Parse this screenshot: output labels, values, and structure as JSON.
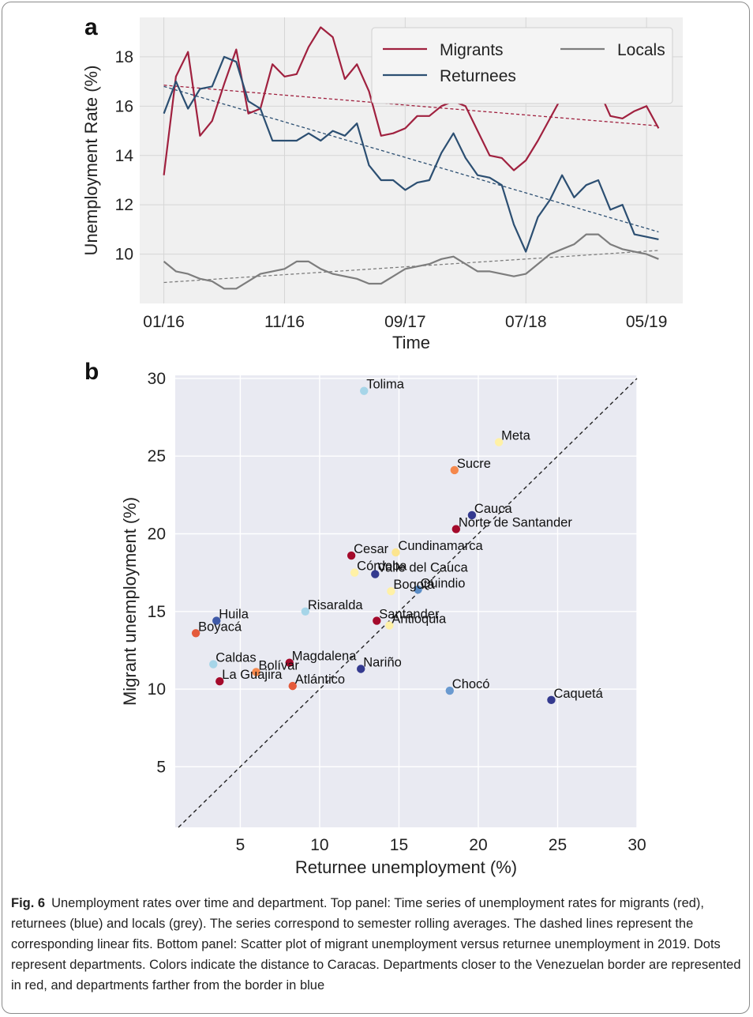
{
  "chart_data": [
    {
      "panel_label": "a",
      "type": "line",
      "xlabel": "Time",
      "ylabel": "Unemployment Rate (%)",
      "x_tick_labels": [
        "01/16",
        "11/16",
        "09/17",
        "07/18",
        "05/19"
      ],
      "x_ticks": [
        "2016-01",
        "2016-11",
        "2017-09",
        "2018-07",
        "2019-05"
      ],
      "x_range": [
        "2015-11",
        "2019-08"
      ],
      "y_ticks": [
        10,
        12,
        14,
        16,
        18
      ],
      "ylim": [
        8.0,
        19.6
      ],
      "grid": true,
      "legend_position": "top-right",
      "x": [
        "2016-01",
        "2016-02",
        "2016-03",
        "2016-04",
        "2016-05",
        "2016-06",
        "2016-07",
        "2016-08",
        "2016-09",
        "2016-10",
        "2016-11",
        "2016-12",
        "2017-01",
        "2017-02",
        "2017-03",
        "2017-04",
        "2017-05",
        "2017-06",
        "2017-07",
        "2017-08",
        "2017-09",
        "2017-10",
        "2017-11",
        "2017-12",
        "2018-01",
        "2018-02",
        "2018-03",
        "2018-04",
        "2018-05",
        "2018-06",
        "2018-07",
        "2018-08",
        "2018-09",
        "2018-10",
        "2018-11",
        "2018-12",
        "2019-01",
        "2019-02",
        "2019-03",
        "2019-04",
        "2019-05",
        "2019-06"
      ],
      "series": [
        {
          "name": "Migrants",
          "color": "#a0213f",
          "values": [
            13.2,
            17.2,
            18.2,
            14.8,
            15.4,
            16.9,
            18.3,
            15.7,
            15.9,
            17.7,
            17.2,
            17.3,
            18.4,
            19.2,
            18.8,
            17.1,
            17.7,
            16.6,
            14.8,
            14.9,
            15.1,
            15.6,
            15.6,
            16.0,
            16.2,
            16.0,
            15.0,
            14.0,
            13.9,
            13.4,
            13.8,
            14.6,
            15.5,
            16.4,
            16.2,
            16.5,
            16.7,
            15.6,
            15.5,
            15.8,
            16.0,
            15.1
          ],
          "trend": [
            16.85,
            15.2
          ]
        },
        {
          "name": "Returnees",
          "color": "#2c4f72",
          "values": [
            15.7,
            17.0,
            15.9,
            16.7,
            16.8,
            18.0,
            17.8,
            16.2,
            15.9,
            14.6,
            14.6,
            14.6,
            14.9,
            14.6,
            15.0,
            14.8,
            15.3,
            13.6,
            13.0,
            13.0,
            12.6,
            12.9,
            13.0,
            14.1,
            14.9,
            13.9,
            13.2,
            13.1,
            12.8,
            11.2,
            10.1,
            11.5,
            12.2,
            13.2,
            12.3,
            12.8,
            13.0,
            11.8,
            12.0,
            10.8,
            10.7,
            10.6
          ],
          "trend": [
            16.8,
            10.9
          ]
        },
        {
          "name": "Locals",
          "color": "#7d7d7d",
          "values": [
            9.7,
            9.3,
            9.2,
            9.0,
            8.9,
            8.6,
            8.6,
            8.9,
            9.2,
            9.3,
            9.4,
            9.7,
            9.7,
            9.4,
            9.2,
            9.1,
            9.0,
            8.8,
            8.8,
            9.1,
            9.4,
            9.5,
            9.6,
            9.8,
            9.9,
            9.6,
            9.3,
            9.3,
            9.2,
            9.1,
            9.2,
            9.6,
            10.0,
            10.2,
            10.4,
            10.8,
            10.8,
            10.4,
            10.2,
            10.1,
            10.0,
            9.8
          ],
          "trend": [
            8.85,
            10.15
          ]
        }
      ]
    },
    {
      "panel_label": "b",
      "type": "scatter",
      "xlabel": "Returnee unemployment (%)",
      "ylabel": "Migrant unemployment (%)",
      "x_ticks": [
        5,
        10,
        15,
        20,
        25,
        30
      ],
      "y_ticks": [
        5,
        10,
        15,
        20,
        25,
        30
      ],
      "xlim": [
        0.9,
        30
      ],
      "ylim": [
        1.1,
        30.2
      ],
      "grid": true,
      "reference_line": "y = x",
      "points": [
        {
          "label": "Tolima",
          "x": 12.8,
          "y": 29.2,
          "color": "#a6d5e8"
        },
        {
          "label": "Meta",
          "x": 21.3,
          "y": 25.9,
          "color": "#fff1a6"
        },
        {
          "label": "Sucre",
          "x": 18.5,
          "y": 24.1,
          "color": "#f5884c"
        },
        {
          "label": "Cauca",
          "x": 19.6,
          "y": 21.2,
          "color": "#343a8f"
        },
        {
          "label": "Norte de Santander",
          "x": 18.6,
          "y": 20.3,
          "color": "#a40a2b"
        },
        {
          "label": "Cesar",
          "x": 12.0,
          "y": 18.6,
          "color": "#a40a2b"
        },
        {
          "label": "Cundinamarca",
          "x": 14.8,
          "y": 18.8,
          "color": "#fce58f"
        },
        {
          "label": "Córdoba",
          "x": 12.2,
          "y": 17.5,
          "color": "#fff1a6"
        },
        {
          "label": "Valle del Cauca",
          "x": 13.5,
          "y": 17.4,
          "color": "#343a8f"
        },
        {
          "label": "Bogotá",
          "x": 14.5,
          "y": 16.3,
          "color": "#fff1a6"
        },
        {
          "label": "Quindio",
          "x": 16.2,
          "y": 16.4,
          "color": "#5a8cc6"
        },
        {
          "label": "Risaralda",
          "x": 9.1,
          "y": 15.0,
          "color": "#a6d5e8"
        },
        {
          "label": "Santander",
          "x": 13.6,
          "y": 14.4,
          "color": "#a40a2b"
        },
        {
          "label": "Antioquia",
          "x": 14.4,
          "y": 14.1,
          "color": "#fff1a6"
        },
        {
          "label": "Huila",
          "x": 3.5,
          "y": 14.4,
          "color": "#3f5aa8"
        },
        {
          "label": "Boyacá",
          "x": 2.2,
          "y": 13.6,
          "color": "#e45a3b"
        },
        {
          "label": "Caldas",
          "x": 3.3,
          "y": 11.6,
          "color": "#a6d5e8"
        },
        {
          "label": "Magdalena",
          "x": 8.1,
          "y": 11.7,
          "color": "#a40a2b"
        },
        {
          "label": "Bolívar",
          "x": 6.0,
          "y": 11.1,
          "color": "#f5884c"
        },
        {
          "label": "Nariño",
          "x": 12.6,
          "y": 11.3,
          "color": "#343a8f"
        },
        {
          "label": "La Guajira",
          "x": 3.7,
          "y": 10.5,
          "color": "#a40a2b"
        },
        {
          "label": "Atlántico",
          "x": 8.3,
          "y": 10.2,
          "color": "#e45a3b"
        },
        {
          "label": "Chocó",
          "x": 18.2,
          "y": 9.9,
          "color": "#6a9ad0"
        },
        {
          "label": "Caquetá",
          "x": 24.6,
          "y": 9.3,
          "color": "#343a8f"
        }
      ]
    }
  ],
  "caption": {
    "label": "Fig. 6",
    "text": "Unemployment rates over time and department. Top panel: Time series of unemployment rates for migrants (red), returnees (blue) and locals (grey). The series correspond to semester rolling averages. The dashed lines represent the corresponding linear fits. Bottom panel: Scatter plot of migrant unemployment versus returnee unemployment in 2019. Dots represent departments. Colors indicate the distance to Caracas. Departments closer to the Venezuelan border are represented in red, and departments farther from the border in blue"
  }
}
